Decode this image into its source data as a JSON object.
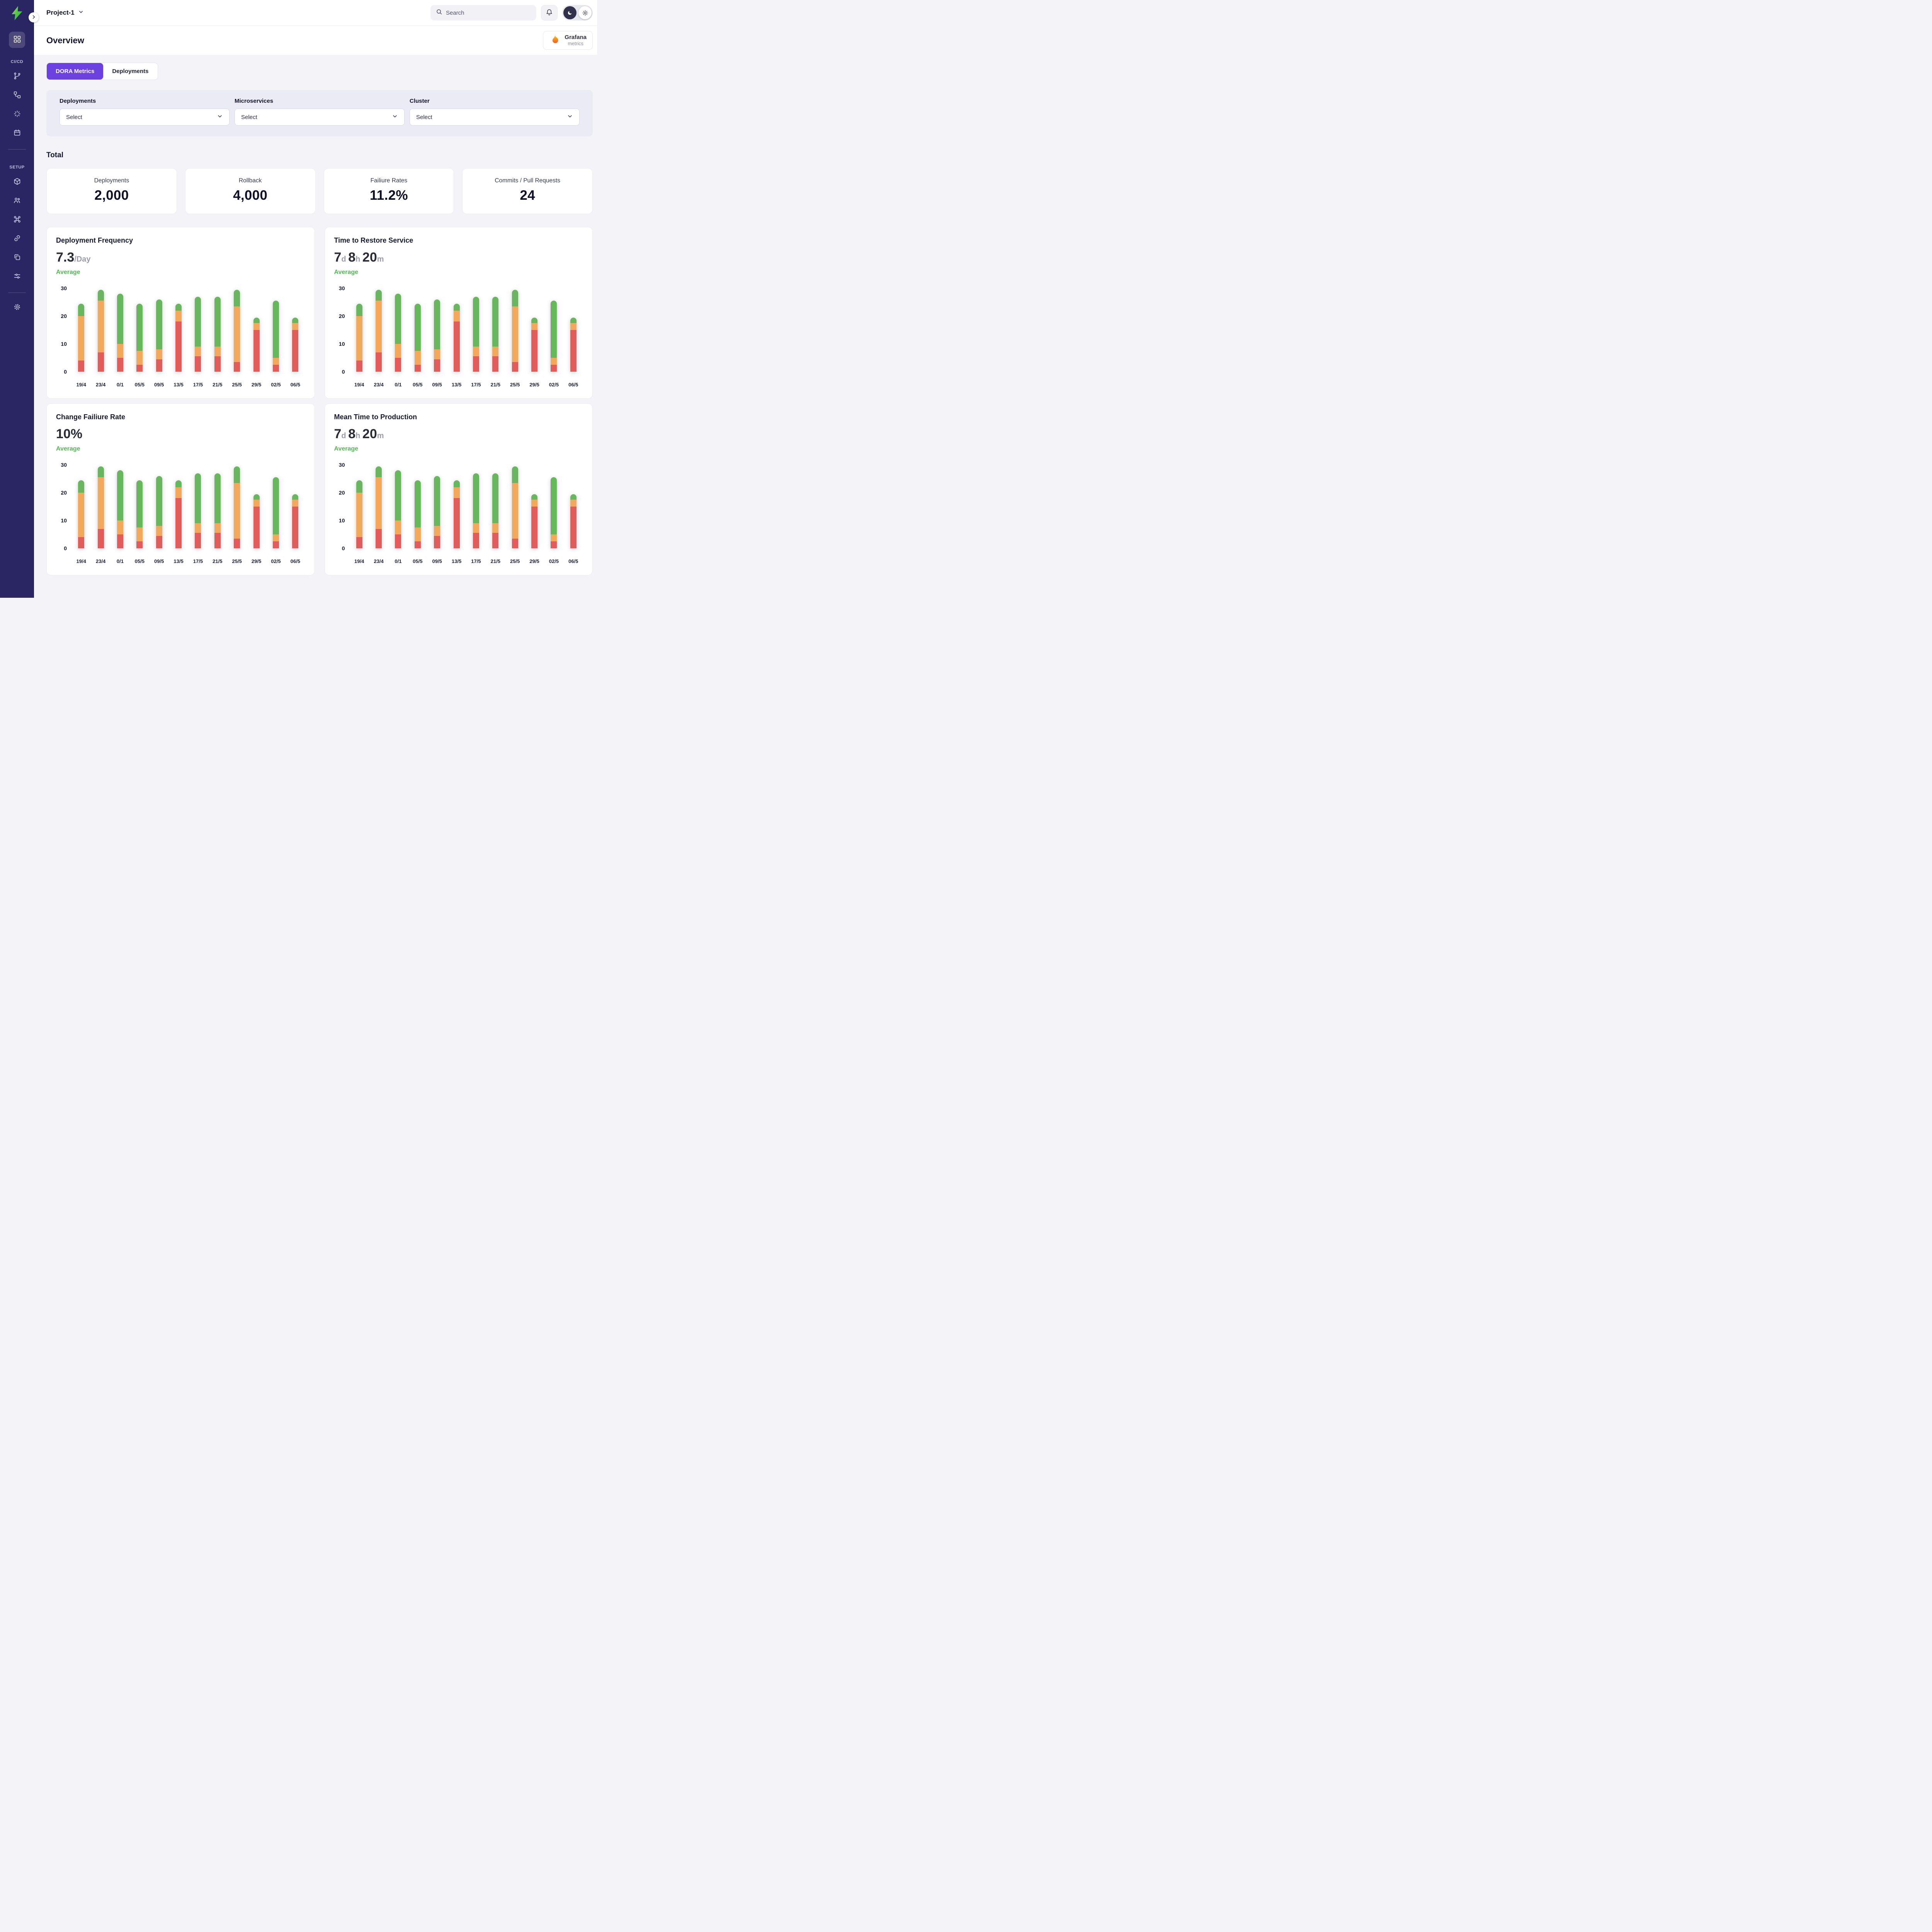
{
  "colors": {
    "accent_purple": "#6b42e0",
    "sidebar_bg": "#2a2664",
    "average_green": "#57b857",
    "bar_red": "#e25c5c",
    "bar_orange": "#f2a95c",
    "bar_green": "#68b75f"
  },
  "sidebar": {
    "section1_label": "CI/CD",
    "section2_label": "SETUP"
  },
  "topbar": {
    "project_name": "Project-1",
    "search_placeholder": "Search"
  },
  "page": {
    "title": "Overview",
    "grafana_badge": {
      "title": "Grafana",
      "subtitle": "metrics"
    }
  },
  "tabs": [
    {
      "label": "DORA Metrics",
      "active": true
    },
    {
      "label": "Deployments",
      "active": false
    }
  ],
  "filters": [
    {
      "label": "Deployments",
      "value": "Select"
    },
    {
      "label": "Microservices",
      "value": "Select"
    },
    {
      "label": "Cluster",
      "value": "Select"
    }
  ],
  "total_section": {
    "heading": "Total",
    "stats": [
      {
        "label": "Deployments",
        "value": "2,000"
      },
      {
        "label": "Rollback",
        "value": "4,000"
      },
      {
        "label": "Failiure Rates",
        "value": "11.2%"
      },
      {
        "label": "Commits / Pull Requests",
        "value": "24"
      }
    ]
  },
  "chart_data": [
    {
      "type": "bar",
      "stacked": true,
      "title": "Deployment Frequency",
      "metric_parts": [
        {
          "text": "7.3",
          "muted": false
        },
        {
          "text": "/Day",
          "muted": true
        }
      ],
      "subtitle": "Average",
      "ylim": [
        0,
        30
      ],
      "yticks": [
        30,
        20,
        10,
        0
      ],
      "grid": false,
      "legend": false,
      "categories": [
        "19/4",
        "23/4",
        "0/1",
        "05/5",
        "09/5",
        "13/5",
        "17/5",
        "21/5",
        "25/5",
        "29/5",
        "02/5",
        "06/5"
      ],
      "series": [
        {
          "name": "red",
          "color": "#e25c5c",
          "values": [
            4,
            7,
            5,
            2.5,
            4.5,
            18,
            5.5,
            5.5,
            3.5,
            15,
            2.5,
            15
          ]
        },
        {
          "name": "orange",
          "color": "#f2a95c",
          "values": [
            16,
            18.5,
            5,
            5,
            3.5,
            4,
            3.5,
            3.5,
            20,
            2.5,
            2.5,
            2.5
          ]
        },
        {
          "name": "green",
          "color": "#68b75f",
          "values": [
            4.5,
            4,
            18,
            17,
            18,
            2.5,
            18,
            18,
            6,
            2,
            20.5,
            2
          ]
        }
      ]
    },
    {
      "type": "bar",
      "stacked": true,
      "title": "Time to Restore Service",
      "metric_parts": [
        {
          "text": "7",
          "muted": false
        },
        {
          "text": "d ",
          "muted": true
        },
        {
          "text": "8",
          "muted": false
        },
        {
          "text": "h ",
          "muted": true
        },
        {
          "text": "20",
          "muted": false
        },
        {
          "text": "m",
          "muted": true
        }
      ],
      "subtitle": "Average",
      "ylim": [
        0,
        30
      ],
      "yticks": [
        30,
        20,
        10,
        0
      ],
      "grid": false,
      "legend": false,
      "categories": [
        "19/4",
        "23/4",
        "0/1",
        "05/5",
        "09/5",
        "13/5",
        "17/5",
        "21/5",
        "25/5",
        "29/5",
        "02/5",
        "06/5"
      ],
      "series": [
        {
          "name": "red",
          "color": "#e25c5c",
          "values": [
            4,
            7,
            5,
            2.5,
            4.5,
            18,
            5.5,
            5.5,
            3.5,
            15,
            2.5,
            15
          ]
        },
        {
          "name": "orange",
          "color": "#f2a95c",
          "values": [
            16,
            18.5,
            5,
            5,
            3.5,
            4,
            3.5,
            3.5,
            20,
            2.5,
            2.5,
            2.5
          ]
        },
        {
          "name": "green",
          "color": "#68b75f",
          "values": [
            4.5,
            4,
            18,
            17,
            18,
            2.5,
            18,
            18,
            6,
            2,
            20.5,
            2
          ]
        }
      ]
    },
    {
      "type": "bar",
      "stacked": true,
      "title": "Change Failiure Rate",
      "metric_parts": [
        {
          "text": "10%",
          "muted": false
        }
      ],
      "subtitle": "Average",
      "ylim": [
        0,
        30
      ],
      "yticks": [
        30,
        20,
        10,
        0
      ],
      "grid": false,
      "legend": false,
      "categories": [
        "19/4",
        "23/4",
        "0/1",
        "05/5",
        "09/5",
        "13/5",
        "17/5",
        "21/5",
        "25/5",
        "29/5",
        "02/5",
        "06/5"
      ],
      "series": [
        {
          "name": "red",
          "color": "#e25c5c",
          "values": [
            4,
            7,
            5,
            2.5,
            4.5,
            18,
            5.5,
            5.5,
            3.5,
            15,
            2.5,
            15
          ]
        },
        {
          "name": "orange",
          "color": "#f2a95c",
          "values": [
            16,
            18.5,
            5,
            5,
            3.5,
            4,
            3.5,
            3.5,
            20,
            2.5,
            2.5,
            2.5
          ]
        },
        {
          "name": "green",
          "color": "#68b75f",
          "values": [
            4.5,
            4,
            18,
            17,
            18,
            2.5,
            18,
            18,
            6,
            2,
            20.5,
            2
          ]
        }
      ]
    },
    {
      "type": "bar",
      "stacked": true,
      "title": "Mean Time to Production",
      "metric_parts": [
        {
          "text": "7",
          "muted": false
        },
        {
          "text": "d ",
          "muted": true
        },
        {
          "text": "8",
          "muted": false
        },
        {
          "text": "h ",
          "muted": true
        },
        {
          "text": "20",
          "muted": false
        },
        {
          "text": "m",
          "muted": true
        }
      ],
      "subtitle": "Average",
      "ylim": [
        0,
        30
      ],
      "yticks": [
        30,
        20,
        10,
        0
      ],
      "grid": false,
      "legend": false,
      "categories": [
        "19/4",
        "23/4",
        "0/1",
        "05/5",
        "09/5",
        "13/5",
        "17/5",
        "21/5",
        "25/5",
        "29/5",
        "02/5",
        "06/5"
      ],
      "series": [
        {
          "name": "red",
          "color": "#e25c5c",
          "values": [
            4,
            7,
            5,
            2.5,
            4.5,
            18,
            5.5,
            5.5,
            3.5,
            15,
            2.5,
            15
          ]
        },
        {
          "name": "orange",
          "color": "#f2a95c",
          "values": [
            16,
            18.5,
            5,
            5,
            3.5,
            4,
            3.5,
            3.5,
            20,
            2.5,
            2.5,
            2.5
          ]
        },
        {
          "name": "green",
          "color": "#68b75f",
          "values": [
            4.5,
            4,
            18,
            17,
            18,
            2.5,
            18,
            18,
            6,
            2,
            20.5,
            2
          ]
        }
      ]
    }
  ]
}
